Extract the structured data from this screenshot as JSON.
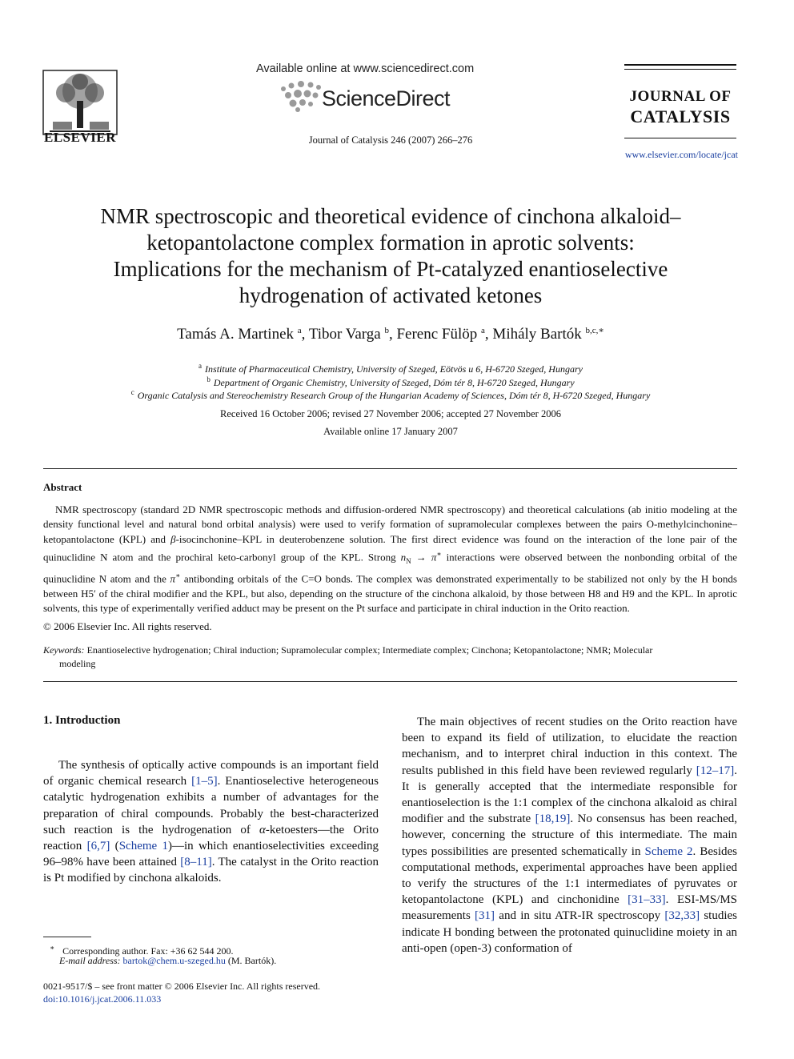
{
  "header": {
    "publisher": "ELSEVIER",
    "available_online": "Available online at www.sciencedirect.com",
    "sciencedirect": "ScienceDirect",
    "citation": "Journal of Catalysis 246 (2007) 266–276",
    "journal_line1": "JOURNAL OF",
    "journal_line2": "CATALYSIS",
    "journal_url": "www.elsevier.com/locate/jcat"
  },
  "article": {
    "title_lines": [
      "NMR spectroscopic and theoretical evidence of cinchona alkaloid–",
      "ketopantolactone complex formation in aprotic solvents:",
      "Implications for the mechanism of Pt-catalyzed enantioselective",
      "hydrogenation of activated ketones"
    ],
    "authors": [
      {
        "name": "Tamás A. Martinek",
        "sup": "a"
      },
      {
        "name": "Tibor Varga",
        "sup": "b"
      },
      {
        "name": "Ferenc Fülöp",
        "sup": "a"
      },
      {
        "name": "Mihály Bartók",
        "sup": "b,c,∗"
      }
    ],
    "affiliations": [
      {
        "mark": "a",
        "text": "Institute of Pharmaceutical Chemistry, University of Szeged, Eötvös u 6, H-6720 Szeged, Hungary"
      },
      {
        "mark": "b",
        "text": "Department of Organic Chemistry, University of Szeged, Dóm tér 8, H-6720 Szeged, Hungary"
      },
      {
        "mark": "c",
        "text": "Organic Catalysis and Stereochemistry Research Group of the Hungarian Academy of Sciences, Dóm tér 8, H-6720 Szeged, Hungary"
      }
    ],
    "received": "Received 16 October 2006; revised 27 November 2006; accepted 27 November 2006",
    "available": "Available online 17 January 2007"
  },
  "abstract": {
    "heading": "Abstract",
    "part1": "NMR spectroscopy (standard 2D NMR spectroscopic methods and diffusion-ordered NMR spectroscopy) and theoretical calculations (ab initio modeling at the density functional level and natural bond orbital analysis) were used to verify formation of supramolecular complexes between the pairs O-methylcinchonine–ketopantolactone (KPL) and ",
    "beta": "β",
    "part2": "-isocinchonine–KPL in deuterobenzene solution. The first direct evidence was found on the interaction of the lone pair of the quinuclidine N atom and the prochiral keto-carbonyl group of the KPL. Strong ",
    "nN": "n",
    "nN_sub": "N",
    "arrow": " → ",
    "pistar": "π",
    "star": "∗",
    "part3": " interactions were observed between the nonbonding orbital of the quinuclidine N atom and the ",
    "part4": " antibonding orbitals of the C=O bonds. The complex was demonstrated experimentally to be stabilized not only by the H bonds between H5′ of the chiral modifier and the KPL, but also, depending on the structure of the cinchona alkaloid, by those between H8 and H9 and the KPL. In aprotic solvents, this type of experimentally verified adduct may be present on the Pt surface and participate in chiral induction in the Orito reaction.",
    "copyright": "© 2006 Elsevier Inc. All rights reserved."
  },
  "keywords": {
    "label": "Keywords:",
    "text": " Enantioselective hydrogenation; Chiral induction; Supramolecular complex; Intermediate complex; Cinchona; Ketopantolactone; NMR; Molecular",
    "text_cont": "modeling"
  },
  "intro": {
    "heading": "1.  Introduction",
    "p1_a": "The synthesis of optically active compounds is an important field of organic chemical research ",
    "ref_1_5": "[1–5]",
    "p1_b": ". Enantioselective heterogeneous catalytic hydrogenation exhibits a number of advantages for the preparation of chiral compounds. Probably the best-characterized such reaction is the hydrogenation of ",
    "alpha": "α",
    "p1_c": "-ketoesters—the Orito reaction ",
    "ref_6_7": "[6,7]",
    "p1_d": " (",
    "scheme1": "Scheme 1",
    "p1_e": ")—in which enantioselectivities exceeding 96–98% have been attained ",
    "ref_8_11": "[8–11]",
    "p1_f": ". The catalyst in the Orito reaction is Pt modified by cinchona alkaloids.",
    "p2_a": "The main objectives of recent studies on the Orito reaction have been to expand its field of utilization, to elucidate the reaction mechanism, and to interpret chiral induction in this context. The results published in this field have been reviewed regularly ",
    "ref_12_17": "[12–17]",
    "p2_b": ". It is generally accepted that the intermediate responsible for enantioselection is the 1:1 complex of the cinchona alkaloid as chiral modifier and the substrate ",
    "ref_18_19": "[18,19]",
    "p2_c": ". No consensus has been reached, however, concerning the structure of this intermediate. The main types possibilities are presented schematically in ",
    "scheme2": "Scheme 2",
    "p2_d": ". Besides computational methods, experimental approaches have been applied to verify the structures of the 1:1 intermediates of pyruvates or ketopantolactone (KPL) and cinchonidine ",
    "ref_31_33": "[31–33]",
    "p2_e": ". ESI-MS/MS measurements ",
    "ref_31": "[31]",
    "p2_f": " and in situ ATR-IR spectroscopy ",
    "ref_32_33": "[32,33]",
    "p2_g": " studies indicate H bonding between the protonated quinuclidine moiety in an anti-open (open-3) conformation of"
  },
  "footnotes": {
    "mark": "∗",
    "corresponding": "Corresponding author. Fax: +36 62 544 200.",
    "email_label": "E-mail address:",
    "email": "bartok@chem.u-szeged.hu",
    "email_name": " (M. Bartók).",
    "frontmatter": "0021-9517/$ – see front matter  © 2006 Elsevier Inc. All rights reserved.",
    "doi": "doi:10.1016/j.jcat.2006.11.033"
  }
}
